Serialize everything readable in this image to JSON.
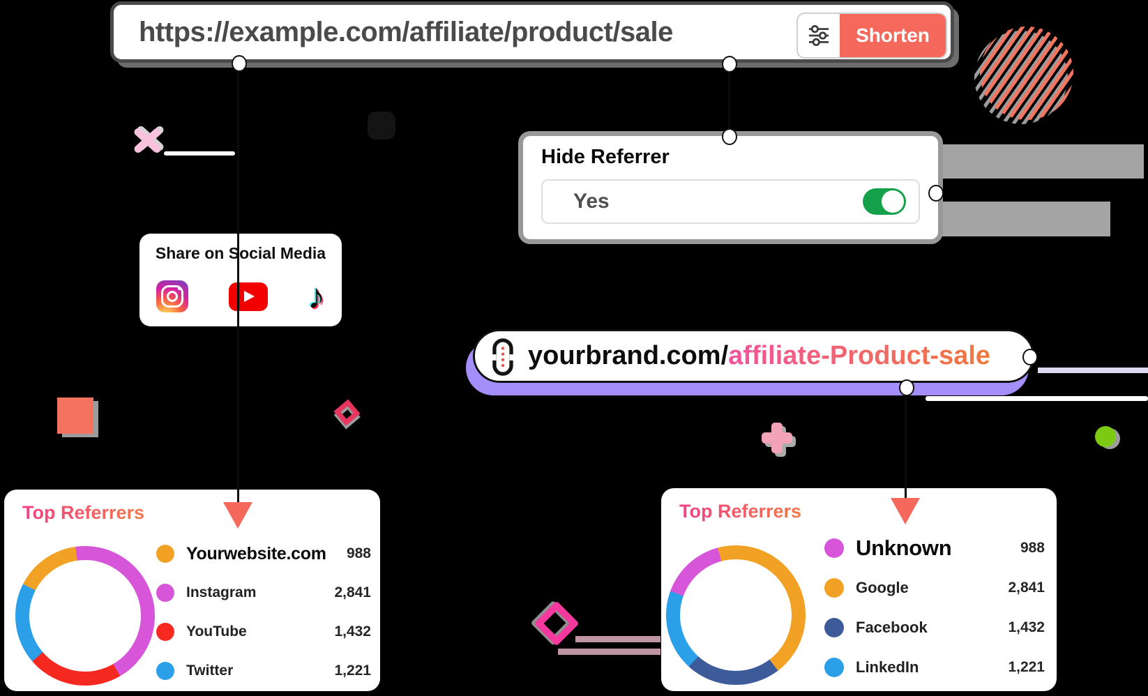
{
  "page": {
    "background": "#000000"
  },
  "url_bar": {
    "url": "https://example.com/affiliate/product/sale",
    "shorten_label": "Shorten",
    "sliders_icon": "settings-sliders-icon",
    "button_color": "#f4695b"
  },
  "hide_referrer": {
    "title": "Hide Referrer",
    "value": "Yes",
    "toggle_state": "on",
    "toggle_color": "#15a14b"
  },
  "share": {
    "title": "Share on Social Media",
    "icons": [
      "instagram-icon",
      "youtube-icon",
      "tiktok-icon"
    ]
  },
  "short_link": {
    "icon": "chain-link-icon",
    "prefix": "yourbrand.com/",
    "slug": "affiliate-Product-sale",
    "slug_gradient": [
      "#f2539b",
      "#ee7a3c"
    ],
    "shadow_color": "#a48efa"
  },
  "chart_data": [
    {
      "type": "donut",
      "title": "Top Referrers",
      "legend_position": "right",
      "start_angle_deg": -8,
      "draw_order": [
        1,
        2,
        3,
        0
      ],
      "segments": [
        {
          "label": "Yourwebsite.com",
          "value": 988,
          "display": "988",
          "color": "#f1a224",
          "emphasis": true
        },
        {
          "label": "Instagram",
          "value": 2841,
          "display": "2,841",
          "color": "#d655d8"
        },
        {
          "label": "YouTube",
          "value": 1432,
          "display": "1,432",
          "color": "#f5291f"
        },
        {
          "label": "Twitter",
          "value": 1221,
          "display": "1,221",
          "color": "#2b9fe8"
        }
      ]
    },
    {
      "type": "donut",
      "title": "Top Referrers",
      "legend_position": "right",
      "start_angle_deg": -15,
      "draw_order": [
        1,
        2,
        3,
        0
      ],
      "segments": [
        {
          "label": "Unknown",
          "value": 988,
          "display": "988",
          "color": "#d655d8",
          "emphasis": true
        },
        {
          "label": "Google",
          "value": 2841,
          "display": "2,841",
          "color": "#f1a224"
        },
        {
          "label": "Facebook",
          "value": 1432,
          "display": "1,432",
          "color": "#3d5b99"
        },
        {
          "label": "LinkedIn",
          "value": 1221,
          "display": "1,221",
          "color": "#2b9fe8"
        }
      ]
    }
  ],
  "decor": {
    "striped_circle_color": "#f4755f",
    "sparkle_color": "#f9c2dc",
    "coral_square_color": "#f4735f",
    "small_diamond_color": "#e8355e",
    "large_diamond_color": "#f5399e",
    "plus_color": "#f2a3b8",
    "green_dot_color": "#7ccb12",
    "gray_bar_color": "#a4a4a4",
    "mauve_bar_color": "#bf95a4",
    "arrow_color": "#f4695b",
    "connector_line_color": "#0b0b0b"
  }
}
